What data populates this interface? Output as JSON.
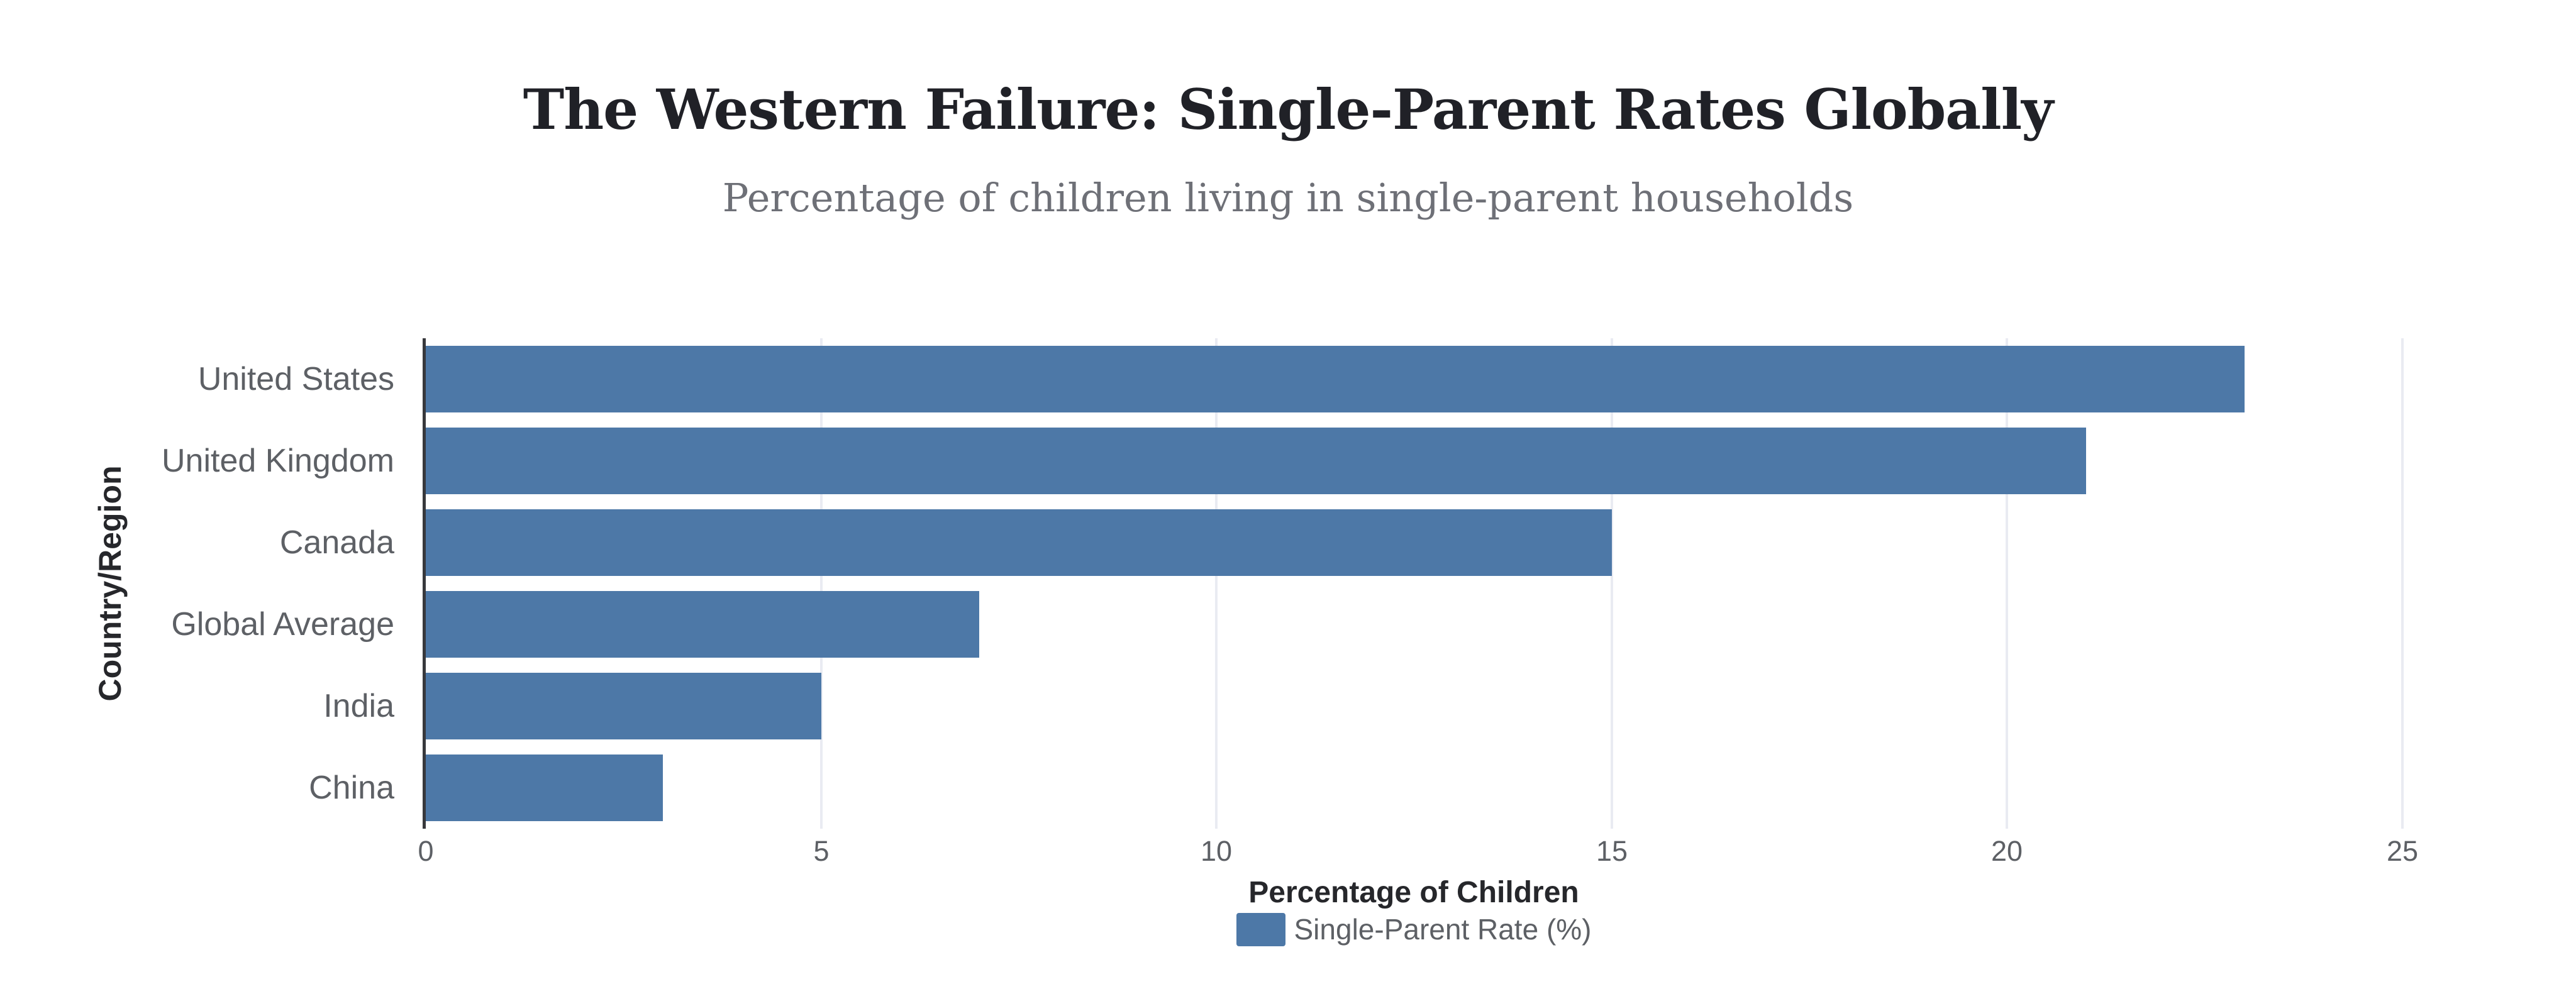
{
  "header": {
    "title": "The Western Failure: Single-Parent Rates Globally",
    "subtitle": "Percentage of children living in single-parent households"
  },
  "chart_data": {
    "type": "bar",
    "orientation": "horizontal",
    "title": "The Western Failure: Single-Parent Rates Globally",
    "subtitle": "Percentage of children living in single-parent households",
    "categories": [
      "United States",
      "United Kingdom",
      "Canada",
      "Global Average",
      "India",
      "China"
    ],
    "series": [
      {
        "name": "Single-Parent Rate (%)",
        "values": [
          23,
          21,
          15,
          7,
          5,
          3
        ]
      }
    ],
    "xlabel": "Percentage of Children",
    "ylabel": "Country/Region",
    "xlim": [
      0,
      25
    ],
    "xticks": [
      0,
      5,
      10,
      15,
      20,
      25
    ],
    "grid": true,
    "legend_position": "bottom",
    "colors": {
      "bar": "#4d78a7",
      "axis_line": "#37383c",
      "gridline": "#e9ebf2",
      "tick_label": "#5d6065",
      "axis_title": "#26272b",
      "title": "#202127",
      "subtitle": "#6e7077"
    }
  },
  "legend": {
    "label": "Single-Parent Rate (%)"
  }
}
